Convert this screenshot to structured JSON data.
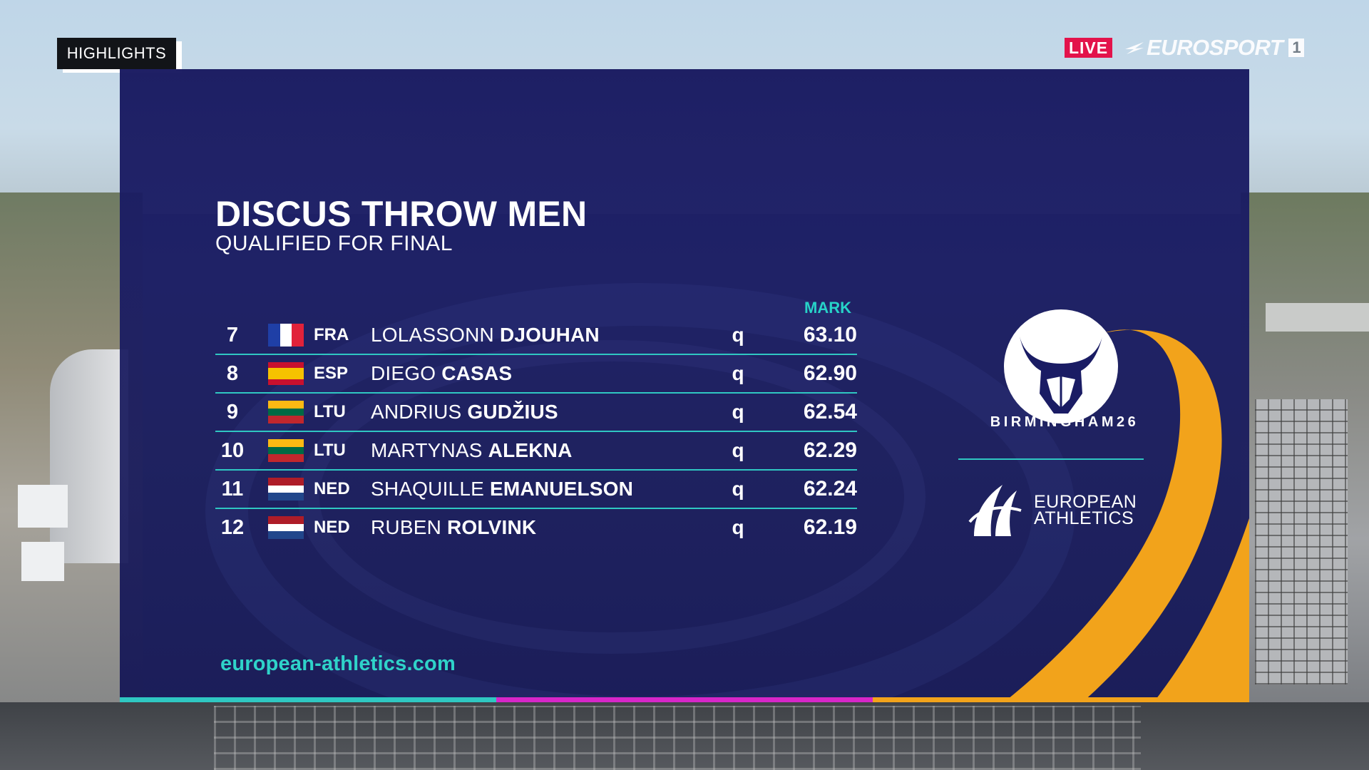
{
  "overlay": {
    "highlights_label": "HIGHLIGHTS",
    "live_label": "LIVE",
    "channel_name": "EUROSPORT",
    "channel_number": "1"
  },
  "graphic": {
    "title": "DISCUS THROW MEN",
    "subtitle": "QUALIFIED FOR FINAL",
    "mark_header": "MARK",
    "rows": [
      {
        "rank": "7",
        "country": "FRA",
        "first_name": "LOLASSONN",
        "last_name": "DJOUHAN",
        "qualifier": "q",
        "mark": "63.10"
      },
      {
        "rank": "8",
        "country": "ESP",
        "first_name": "DIEGO",
        "last_name": "CASAS",
        "qualifier": "q",
        "mark": "62.90"
      },
      {
        "rank": "9",
        "country": "LTU",
        "first_name": "ANDRIUS",
        "last_name": "GUDŽIUS",
        "qualifier": "q",
        "mark": "62.54"
      },
      {
        "rank": "10",
        "country": "LTU",
        "first_name": "MARTYNAS",
        "last_name": "ALEKNA",
        "qualifier": "q",
        "mark": "62.29"
      },
      {
        "rank": "11",
        "country": "NED",
        "first_name": "SHAQUILLE",
        "last_name": "EMANUELSON",
        "qualifier": "q",
        "mark": "62.24"
      },
      {
        "rank": "12",
        "country": "NED",
        "first_name": "RUBEN",
        "last_name": "ROLVINK",
        "qualifier": "q",
        "mark": "62.19"
      }
    ],
    "website": "european-athletics.com",
    "event_logo_text": "BIRMINGHAM26",
    "org_logo_line1": "EUROPEAN",
    "org_logo_line2": "ATHLETICS"
  },
  "colors": {
    "panel_navy": "#1a1c64",
    "accent_teal": "#2fc7c2",
    "accent_magenta": "#d726c9",
    "accent_orange": "#f2a31b",
    "live_red": "#e3134b"
  },
  "icons": {
    "event_logo": "birmingham-bull-icon",
    "org_logo": "european-athletics-icon",
    "channel_logo": "eurosport-swoosh-icon"
  }
}
